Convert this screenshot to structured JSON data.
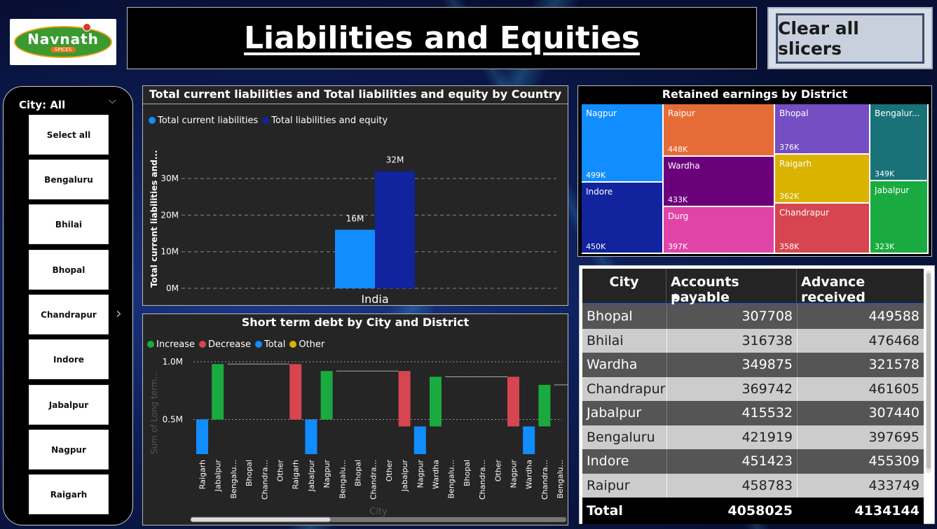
{
  "header": {
    "title": "Liabilities and Equities",
    "clear_button": "Clear all slicers",
    "logo_text": "Navnath",
    "logo_sub": "SPICES"
  },
  "slicer": {
    "label": "City: All",
    "items": [
      "Select all",
      "Bengaluru",
      "Bhilai",
      "Bhopal",
      "Chandrapur",
      "Indore",
      "Jabalpur",
      "Nagpur",
      "Raigarh"
    ]
  },
  "bar_chart": {
    "title": "Total current liabilities and Total liabilities and equity by Country",
    "ylabel": "Total current liabilities and...",
    "legend": [
      "Total current liabilities",
      "Total liabilities and equity"
    ]
  },
  "waterfall": {
    "title": "Short term debt by City and District",
    "ylabel": "Sum of Long term...",
    "xlabel": "City",
    "legend": [
      "Increase",
      "Decrease",
      "Total",
      "Other"
    ]
  },
  "treemap": {
    "title": "Retained earnings by District",
    "cells": [
      {
        "label": "Nagpur",
        "value": "499K",
        "color": "#118dff"
      },
      {
        "label": "Indore",
        "value": "450K",
        "color": "#12239e"
      },
      {
        "label": "Raipur",
        "value": "448K",
        "color": "#e66c37"
      },
      {
        "label": "Wardha",
        "value": "433K",
        "color": "#6b007b"
      },
      {
        "label": "Durg",
        "value": "397K",
        "color": "#e044a7"
      },
      {
        "label": "Bhopal",
        "value": "376K",
        "color": "#744ec2"
      },
      {
        "label": "Raigarh",
        "value": "362K",
        "color": "#d9b300"
      },
      {
        "label": "Chandrapur",
        "value": "358K",
        "color": "#d64550"
      },
      {
        "label": "Bengalur...",
        "value": "349K",
        "color": "#197278"
      },
      {
        "label": "Jabalpur",
        "value": "323K",
        "color": "#1aab40"
      }
    ]
  },
  "table": {
    "headers": [
      "City",
      "Accounts payable",
      "Advance received"
    ],
    "rows": [
      [
        "Bhopal",
        "307708",
        "449588"
      ],
      [
        "Bhilai",
        "316738",
        "476468"
      ],
      [
        "Wardha",
        "349875",
        "321578"
      ],
      [
        "Chandrapur",
        "369742",
        "461605"
      ],
      [
        "Jabalpur",
        "415532",
        "307440"
      ],
      [
        "Bengaluru",
        "421919",
        "397695"
      ],
      [
        "Indore",
        "451423",
        "455309"
      ],
      [
        "Raipur",
        "458783",
        "433749"
      ]
    ],
    "total": [
      "Total",
      "4058025",
      "4134144"
    ]
  },
  "chart_data": [
    {
      "type": "bar",
      "title": "Total current liabilities and Total liabilities and equity by Country",
      "categories": [
        "India"
      ],
      "series": [
        {
          "name": "Total current liabilities",
          "values": [
            16
          ],
          "color": "#118dff"
        },
        {
          "name": "Total liabilities and equity",
          "values": [
            32
          ],
          "color": "#12239e"
        }
      ],
      "data_labels": [
        "16M",
        "32M"
      ],
      "ylim": [
        0,
        35
      ],
      "yticks": [
        "0M",
        "10M",
        "20M",
        "30M"
      ],
      "unit": "M",
      "legend": "top-left",
      "grid": true
    },
    {
      "type": "waterfall",
      "title": "Short term debt by City and District",
      "xlabel": "City",
      "yticks": [
        "0.5M",
        "1.0M"
      ],
      "categories": [
        "Raigarh",
        "Jabalpur",
        "Bengalu...",
        "Bhopal",
        "Chandra...",
        "Other",
        "Raigarh",
        "Jabalpur",
        "Nagpur",
        "Bengalu...",
        "Bhopal",
        "Chandra...",
        "Other",
        "Jabalpur",
        "Nagpur",
        "Wardha",
        "Bengalu...",
        "Bhopal",
        "Chandra...",
        "Other",
        "Nagpur",
        "Wardha",
        "Chandra...",
        "Bengalu..."
      ],
      "steps": [
        [
          0.2,
          0.5,
          "Total"
        ],
        [
          0.5,
          0.98,
          "Increase"
        ],
        [
          0.98,
          0.98,
          "Other"
        ],
        [
          0.98,
          0.98,
          "Other"
        ],
        [
          0.98,
          0.98,
          "Other"
        ],
        [
          0.98,
          0.98,
          "Other"
        ],
        [
          0.98,
          0.5,
          "Decrease"
        ],
        [
          0.5,
          0.2,
          "Total"
        ],
        [
          0.5,
          0.92,
          "Increase"
        ],
        [
          0.92,
          0.92,
          "Other"
        ],
        [
          0.92,
          0.92,
          "Other"
        ],
        [
          0.92,
          0.92,
          "Other"
        ],
        [
          0.92,
          0.92,
          "Other"
        ],
        [
          0.92,
          0.44,
          "Decrease"
        ],
        [
          0.44,
          0.2,
          "Total"
        ],
        [
          0.44,
          0.87,
          "Increase"
        ],
        [
          0.87,
          0.87,
          "Other"
        ],
        [
          0.87,
          0.87,
          "Other"
        ],
        [
          0.87,
          0.87,
          "Other"
        ],
        [
          0.87,
          0.87,
          "Other"
        ],
        [
          0.87,
          0.44,
          "Decrease"
        ],
        [
          0.44,
          0.2,
          "Total"
        ],
        [
          0.44,
          0.8,
          "Increase"
        ],
        [
          0.8,
          0.8,
          "Other"
        ]
      ],
      "colors": {
        "Increase": "#1aab40",
        "Decrease": "#d64550",
        "Total": "#118dff",
        "Other": "#d9b300"
      },
      "legend": "top-left",
      "grid": true
    }
  ]
}
